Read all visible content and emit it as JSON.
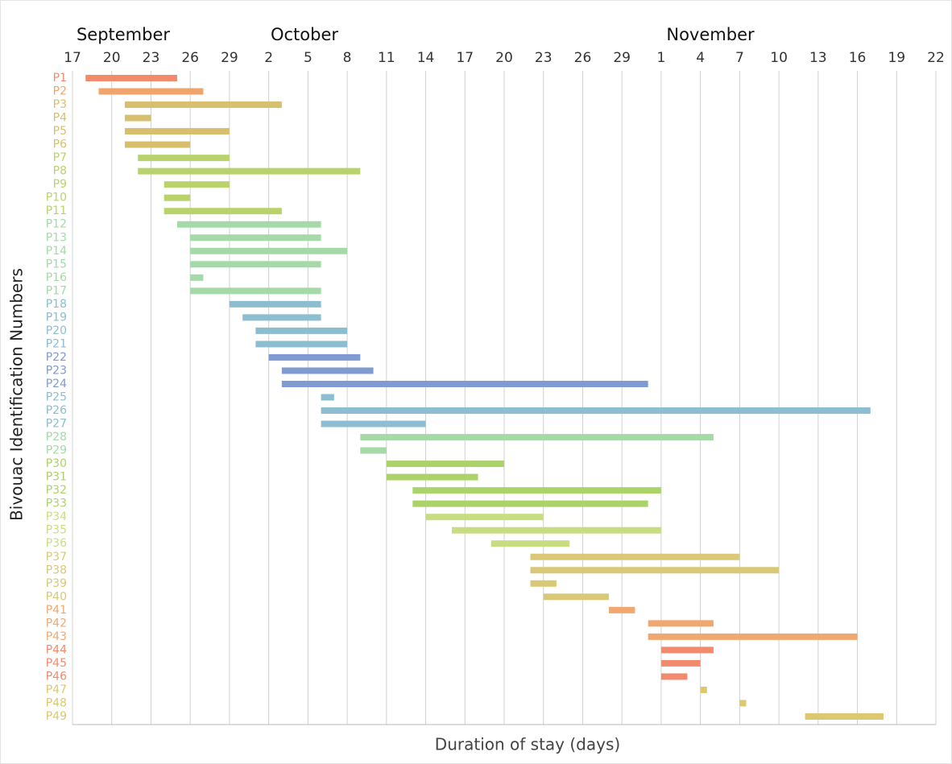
{
  "chart_data": {
    "type": "gantt",
    "x_label": "Duration of stay (days)",
    "y_label": "Bivouac Identification Numbers",
    "month_labels": [
      "September",
      "October",
      "November"
    ],
    "categories": [
      "P1",
      "P2",
      "P3",
      "P4",
      "P5",
      "P6",
      "P7",
      "P8",
      "P9",
      "P10",
      "P11",
      "P12",
      "P13",
      "P14",
      "P15",
      "P16",
      "P17",
      "P18",
      "P19",
      "P20",
      "P21",
      "P22",
      "P23",
      "P24",
      "P25",
      "P26",
      "P27",
      "P28",
      "P29",
      "P30",
      "P31",
      "P32",
      "P33",
      "P34",
      "P35",
      "P36",
      "P37",
      "P38",
      "P39",
      "P40",
      "P41",
      "P42",
      "P43",
      "P44",
      "P45",
      "P46",
      "P47",
      "P48",
      "P49"
    ],
    "start": [
      1,
      2,
      4,
      4,
      4,
      4,
      5,
      5,
      7,
      7,
      7,
      8,
      9,
      9,
      9,
      9,
      9,
      12,
      13,
      14,
      14,
      15,
      16,
      16,
      19,
      19,
      19,
      22,
      22,
      24,
      24,
      26,
      26,
      27,
      29,
      32,
      35,
      35,
      35,
      36,
      41,
      44,
      44,
      45,
      45,
      45,
      48,
      51,
      56
    ],
    "end": [
      8,
      10,
      16,
      6,
      12,
      9,
      12,
      22,
      12,
      9,
      16,
      19,
      19,
      21,
      19,
      10,
      19,
      19,
      19,
      21,
      21,
      22,
      23,
      44,
      20,
      61,
      27,
      49,
      24,
      33,
      31,
      45,
      44,
      36,
      45,
      38,
      51,
      54,
      37,
      41,
      43,
      49,
      60,
      49,
      48,
      47,
      48.5,
      51.5,
      62
    ],
    "colors": [
      "#f28b6e",
      "#f0a46b",
      "#d8bf6e",
      "#d8bf6e",
      "#d8bf6e",
      "#d8bf6e",
      "#b9d36c",
      "#b9d36c",
      "#b9d36c",
      "#b9d36c",
      "#b9d36c",
      "#a5d9a8",
      "#a5d9a8",
      "#a5d9a8",
      "#a5d9a8",
      "#a5d9a8",
      "#a5d9a8",
      "#8dbdd1",
      "#8dbdd1",
      "#8dbdd1",
      "#8dbdd1",
      "#7f9bd2",
      "#7f9bd2",
      "#7f9bd2",
      "#8dbdd1",
      "#8dbdd1",
      "#8dbdd1",
      "#a5d9a8",
      "#a5d9a8",
      "#acd26a",
      "#acd26a",
      "#acd26a",
      "#acd26a",
      "#c8dd82",
      "#c8dd82",
      "#c8dd82",
      "#d8c878",
      "#d8c878",
      "#d8c878",
      "#d8c878",
      "#f0a870",
      "#f0a870",
      "#f0a870",
      "#f28a6e",
      "#f28a6e",
      "#f28a6e",
      "#dcc870",
      "#dcc870",
      "#dcc870"
    ],
    "xlim": [
      0,
      66
    ],
    "xticks": [
      {
        "value": 0,
        "label": "17"
      },
      {
        "value": 3,
        "label": "20"
      },
      {
        "value": 6,
        "label": "23"
      },
      {
        "value": 9,
        "label": "26"
      },
      {
        "value": 12,
        "label": "29"
      },
      {
        "value": 15,
        "label": "2"
      },
      {
        "value": 18,
        "label": "5"
      },
      {
        "value": 21,
        "label": "8"
      },
      {
        "value": 24,
        "label": "11"
      },
      {
        "value": 27,
        "label": "14"
      },
      {
        "value": 30,
        "label": "17"
      },
      {
        "value": 33,
        "label": "20"
      },
      {
        "value": 36,
        "label": "23"
      },
      {
        "value": 39,
        "label": "26"
      },
      {
        "value": 42,
        "label": "29"
      },
      {
        "value": 45,
        "label": "1"
      },
      {
        "value": 48,
        "label": "4"
      },
      {
        "value": 51,
        "label": "7"
      },
      {
        "value": 54,
        "label": "10"
      },
      {
        "value": 57,
        "label": "13"
      },
      {
        "value": 60,
        "label": "16"
      },
      {
        "value": 63,
        "label": "19"
      },
      {
        "value": 66,
        "label": "22"
      }
    ],
    "grid": true
  }
}
